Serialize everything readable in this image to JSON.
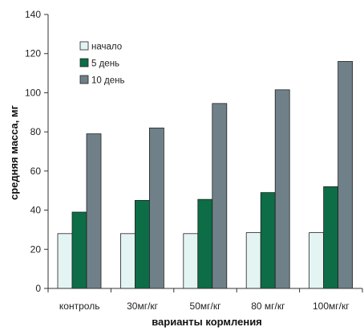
{
  "chart_data": {
    "type": "bar",
    "xlabel": "варианты кормления",
    "ylabel": "средняя масса, мг",
    "categories": [
      "контроль",
      "30мг/кг",
      "50мг/кг",
      "80 мг/кг",
      "100мг/кг"
    ],
    "series": [
      {
        "name": "начало",
        "values": [
          28,
          28,
          28,
          28.5,
          28.5
        ],
        "color": "#e3f4f3"
      },
      {
        "name": "5 день",
        "values": [
          39,
          45,
          45.5,
          49,
          52
        ],
        "color": "#0d6d47"
      },
      {
        "name": "10 день",
        "values": [
          79,
          82,
          94.5,
          101.5,
          116
        ],
        "color": "#6f8089"
      }
    ],
    "ylim": [
      0,
      140
    ],
    "yticks": [
      0,
      20,
      40,
      60,
      80,
      100,
      120,
      140
    ],
    "grid": false,
    "legend_position": "top-left"
  }
}
